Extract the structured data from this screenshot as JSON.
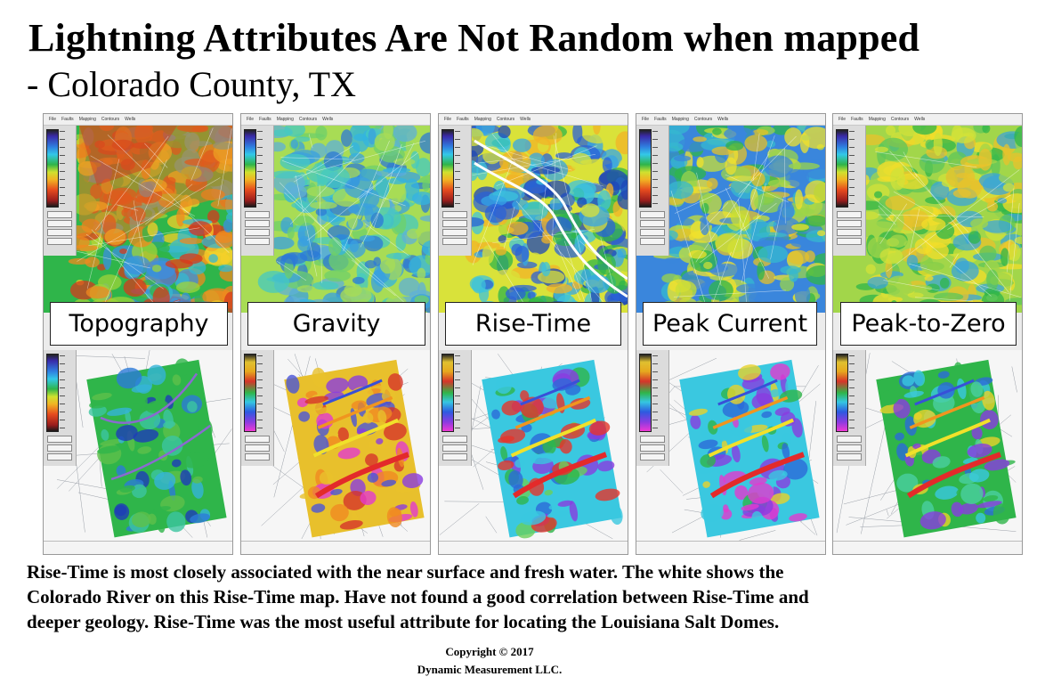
{
  "title": "Lightning Attributes Are Not Random when mapped",
  "subtitle": "- Colorado County, TX",
  "panels": [
    {
      "label": "Topography"
    },
    {
      "label": "Gravity"
    },
    {
      "label": "Rise-Time"
    },
    {
      "label": "Peak Current"
    },
    {
      "label": "Peak-to-Zero"
    }
  ],
  "menu": [
    "File",
    "Faults",
    "Mapping",
    "Contours",
    "Wells"
  ],
  "description": [
    "Rise-Time is most closely associated with the near surface and fresh water. The white shows the",
    "Colorado River on this Rise-Time map. Have not found a good correlation between  Rise-Time and",
    "deeper geology. Rise-Time was the most useful attribute for locating the Louisiana Salt Domes."
  ],
  "copyright": {
    "line1": "Copyright  © 2017",
    "line2": "Dynamic Measurement LLC."
  }
}
